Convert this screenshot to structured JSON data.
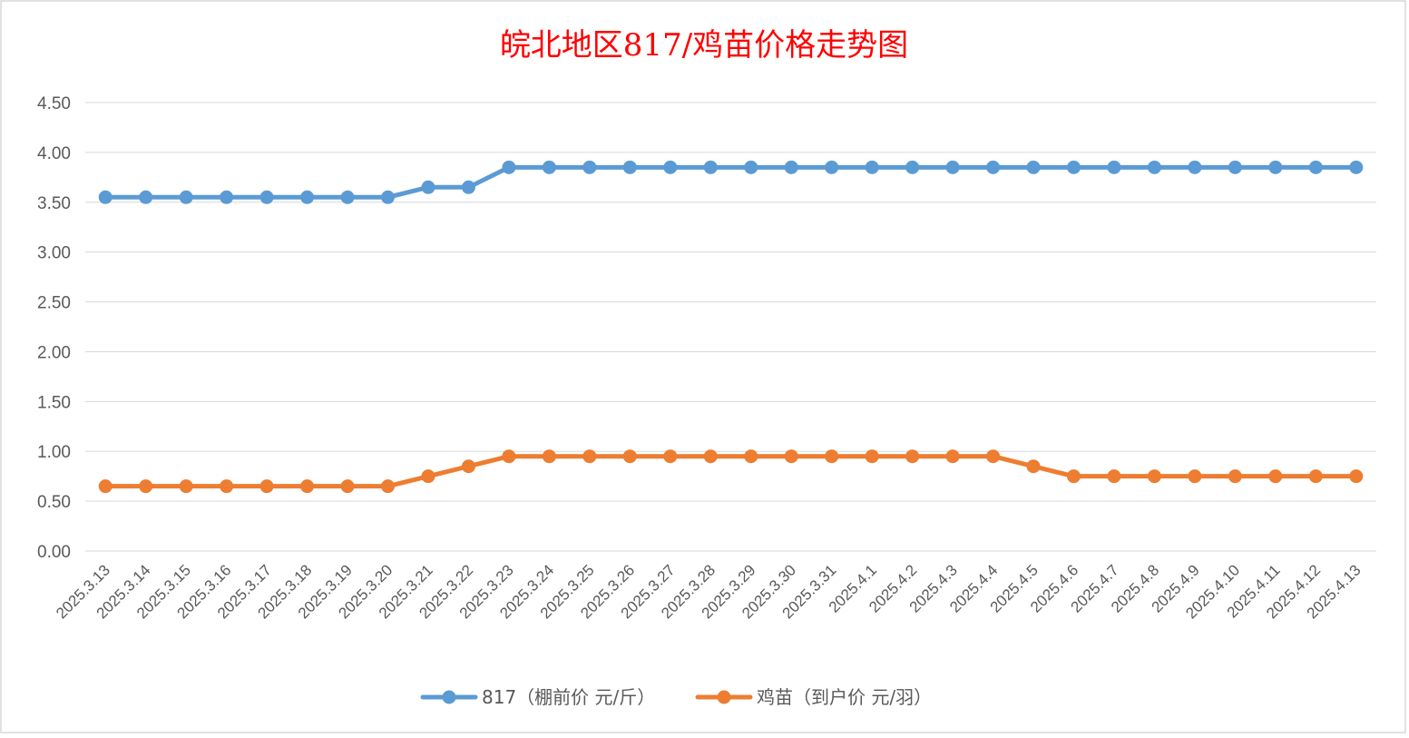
{
  "chart_data": {
    "type": "line",
    "title": "皖北地区817/鸡苗价格走势图",
    "categories": [
      "2025.3.13",
      "2025.3.14",
      "2025.3.15",
      "2025.3.16",
      "2025.3.17",
      "2025.3.18",
      "2025.3.19",
      "2025.3.20",
      "2025.3.21",
      "2025.3.22",
      "2025.3.23",
      "2025.3.24",
      "2025.3.25",
      "2025.3.26",
      "2025.3.27",
      "2025.3.28",
      "2025.3.29",
      "2025.3.30",
      "2025.3.31",
      "2025.4.1",
      "2025.4.2",
      "2025.4.3",
      "2025.4.4",
      "2025.4.5",
      "2025.4.6",
      "2025.4.7",
      "2025.4.8",
      "2025.4.9",
      "2025.4.10",
      "2025.4.11",
      "2025.4.12",
      "2025.4.13"
    ],
    "series": [
      {
        "name": "817（棚前价 元/斤）",
        "color": "#5b9bd5",
        "values": [
          3.55,
          3.55,
          3.55,
          3.55,
          3.55,
          3.55,
          3.55,
          3.55,
          3.65,
          3.65,
          3.85,
          3.85,
          3.85,
          3.85,
          3.85,
          3.85,
          3.85,
          3.85,
          3.85,
          3.85,
          3.85,
          3.85,
          3.85,
          3.85,
          3.85,
          3.85,
          3.85,
          3.85,
          3.85,
          3.85,
          3.85,
          3.85
        ]
      },
      {
        "name": "鸡苗（到户价 元/羽）",
        "color": "#ed7d31",
        "values": [
          0.65,
          0.65,
          0.65,
          0.65,
          0.65,
          0.65,
          0.65,
          0.65,
          0.75,
          0.85,
          0.95,
          0.95,
          0.95,
          0.95,
          0.95,
          0.95,
          0.95,
          0.95,
          0.95,
          0.95,
          0.95,
          0.95,
          0.95,
          0.85,
          0.75,
          0.75,
          0.75,
          0.75,
          0.75,
          0.75,
          0.75,
          0.75
        ]
      }
    ],
    "ylim": [
      0,
      4.5
    ],
    "yticks": [
      "0.00",
      "0.50",
      "1.00",
      "1.50",
      "2.00",
      "2.50",
      "3.00",
      "3.50",
      "4.00",
      "4.50"
    ],
    "grid": true,
    "legend_position": "bottom",
    "title_color": "#ff0000"
  }
}
